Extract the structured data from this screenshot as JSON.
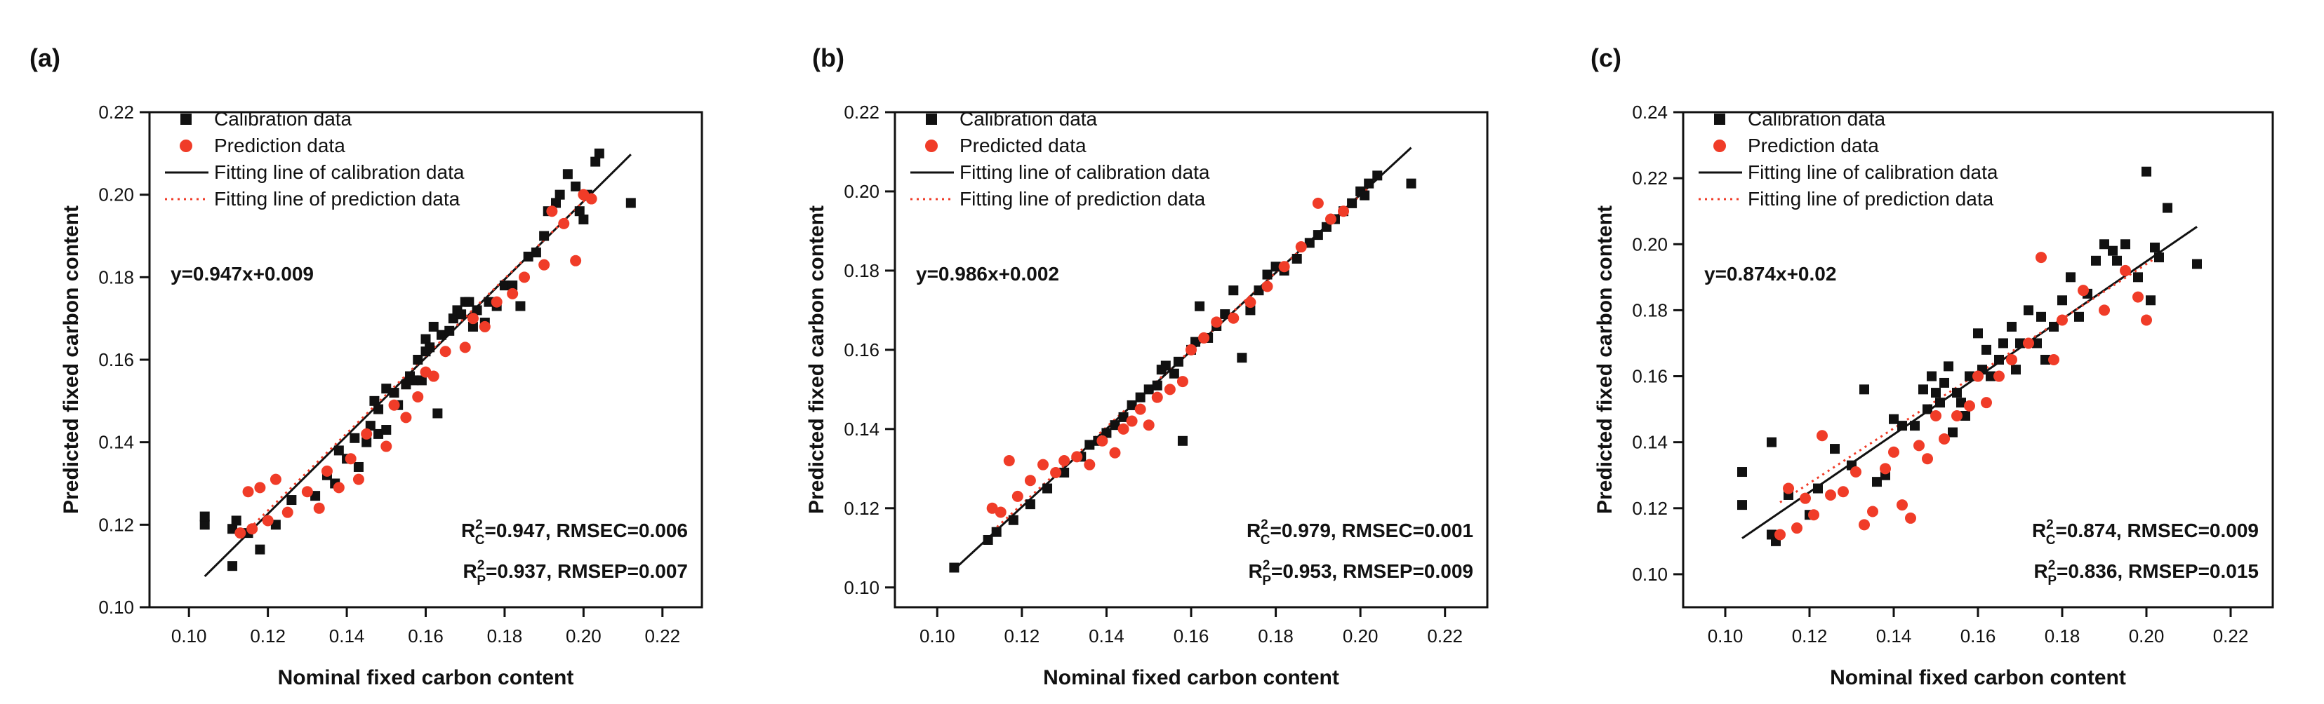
{
  "chart_data": [
    {
      "panel_label": "(a)",
      "type": "scatter",
      "xlabel": "Nominal fixed carbon content",
      "ylabel": "Predicted fixed carbon content",
      "xlim": [
        0.09,
        0.23
      ],
      "ylim": [
        0.1,
        0.22
      ],
      "xticks": [
        "0.10",
        "0.12",
        "0.14",
        "0.16",
        "0.18",
        "0.20",
        "0.22"
      ],
      "yticks": [
        "0.10",
        "0.12",
        "0.14",
        "0.16",
        "0.18",
        "0.20",
        "0.22"
      ],
      "legend": [
        "Calibration data",
        "Prediction data",
        "Fitting line of calibration data",
        "Fitting line of prediction data"
      ],
      "equation": "y=0.947x+0.009",
      "stat_lines": [
        {
          "sym": "R",
          "sup": "2",
          "sub": "C",
          "rest": "=0.947, RMSEC=0.006"
        },
        {
          "sym": "R",
          "sup": "2",
          "sub": "P",
          "rest": "=0.937, RMSEP=0.007"
        }
      ],
      "calibration_fit": {
        "slope": 0.947,
        "intercept": 0.009,
        "x_range": [
          0.104,
          0.212
        ]
      },
      "prediction_fit": {
        "slope": 0.937,
        "intercept": 0.011,
        "x_range": [
          0.113,
          0.202
        ]
      },
      "series": [
        {
          "name": "Calibration data",
          "color": "#111111",
          "marker": "square",
          "x": [
            0.104,
            0.104,
            0.111,
            0.111,
            0.112,
            0.115,
            0.118,
            0.122,
            0.126,
            0.132,
            0.135,
            0.137,
            0.138,
            0.14,
            0.142,
            0.143,
            0.145,
            0.146,
            0.147,
            0.148,
            0.148,
            0.15,
            0.15,
            0.152,
            0.153,
            0.155,
            0.156,
            0.157,
            0.158,
            0.159,
            0.16,
            0.16,
            0.161,
            0.162,
            0.163,
            0.164,
            0.166,
            0.167,
            0.168,
            0.169,
            0.17,
            0.171,
            0.172,
            0.173,
            0.175,
            0.176,
            0.178,
            0.18,
            0.182,
            0.184,
            0.186,
            0.188,
            0.19,
            0.191,
            0.193,
            0.194,
            0.196,
            0.198,
            0.199,
            0.2,
            0.201,
            0.203,
            0.204,
            0.212
          ],
          "y": [
            0.12,
            0.122,
            0.11,
            0.119,
            0.121,
            0.118,
            0.114,
            0.12,
            0.126,
            0.127,
            0.132,
            0.13,
            0.138,
            0.136,
            0.141,
            0.134,
            0.14,
            0.144,
            0.15,
            0.148,
            0.142,
            0.143,
            0.153,
            0.152,
            0.149,
            0.154,
            0.156,
            0.155,
            0.16,
            0.155,
            0.162,
            0.165,
            0.163,
            0.168,
            0.147,
            0.166,
            0.167,
            0.17,
            0.172,
            0.171,
            0.174,
            0.174,
            0.168,
            0.172,
            0.169,
            0.174,
            0.173,
            0.178,
            0.178,
            0.173,
            0.185,
            0.186,
            0.19,
            0.196,
            0.198,
            0.2,
            0.205,
            0.202,
            0.196,
            0.194,
            0.2,
            0.208,
            0.21,
            0.198
          ]
        },
        {
          "name": "Prediction data",
          "color": "#f03c28",
          "marker": "circle",
          "x": [
            0.113,
            0.115,
            0.116,
            0.118,
            0.12,
            0.122,
            0.125,
            0.13,
            0.133,
            0.135,
            0.138,
            0.141,
            0.143,
            0.145,
            0.15,
            0.152,
            0.155,
            0.158,
            0.16,
            0.162,
            0.165,
            0.17,
            0.172,
            0.175,
            0.178,
            0.182,
            0.185,
            0.19,
            0.192,
            0.195,
            0.198,
            0.2,
            0.202
          ],
          "y": [
            0.118,
            0.128,
            0.119,
            0.129,
            0.121,
            0.131,
            0.123,
            0.128,
            0.124,
            0.133,
            0.129,
            0.136,
            0.131,
            0.142,
            0.139,
            0.149,
            0.146,
            0.151,
            0.157,
            0.156,
            0.162,
            0.163,
            0.17,
            0.168,
            0.174,
            0.176,
            0.18,
            0.183,
            0.196,
            0.193,
            0.184,
            0.2,
            0.199
          ]
        },
        {
          "name": "Fitting line of calibration data",
          "color": "#111111",
          "style": "solid"
        },
        {
          "name": "Fitting line of prediction data",
          "color": "#f03c28",
          "style": "dotted"
        }
      ]
    },
    {
      "panel_label": "(b)",
      "type": "scatter",
      "xlabel": "Nominal fixed carbon content",
      "ylabel": "Predicted fixed carbon content",
      "xlim": [
        0.09,
        0.23
      ],
      "ylim": [
        0.095,
        0.22
      ],
      "xticks": [
        "0.10",
        "0.12",
        "0.14",
        "0.16",
        "0.18",
        "0.20",
        "0.22"
      ],
      "yticks": [
        "0.10",
        "0.12",
        "0.14",
        "0.16",
        "0.18",
        "0.20",
        "0.22"
      ],
      "legend": [
        "Calibration data",
        "Predicted data",
        "Fitting line of calibration data",
        "Fitting line of prediction data"
      ],
      "equation": "y=0.986x+0.002",
      "stat_lines": [
        {
          "sym": "R",
          "sup": "2",
          "sub": "C",
          "rest": "=0.979, RMSEC=0.001"
        },
        {
          "sym": "R",
          "sup": "2",
          "sub": "P",
          "rest": "=0.953, RMSEP=0.009"
        }
      ],
      "calibration_fit": {
        "slope": 0.986,
        "intercept": 0.002,
        "x_range": [
          0.104,
          0.212
        ]
      },
      "prediction_fit": {
        "slope": 0.975,
        "intercept": 0.004,
        "x_range": [
          0.113,
          0.202
        ]
      },
      "series": [
        {
          "name": "Calibration data",
          "color": "#111111",
          "marker": "square",
          "x": [
            0.104,
            0.112,
            0.114,
            0.118,
            0.122,
            0.126,
            0.13,
            0.134,
            0.136,
            0.138,
            0.14,
            0.142,
            0.144,
            0.146,
            0.148,
            0.15,
            0.152,
            0.153,
            0.154,
            0.156,
            0.157,
            0.158,
            0.16,
            0.161,
            0.162,
            0.164,
            0.166,
            0.168,
            0.17,
            0.172,
            0.174,
            0.176,
            0.178,
            0.18,
            0.182,
            0.185,
            0.188,
            0.19,
            0.192,
            0.194,
            0.196,
            0.198,
            0.2,
            0.201,
            0.202,
            0.204,
            0.212
          ],
          "y": [
            0.105,
            0.112,
            0.114,
            0.117,
            0.121,
            0.125,
            0.129,
            0.133,
            0.136,
            0.137,
            0.139,
            0.141,
            0.143,
            0.146,
            0.148,
            0.15,
            0.151,
            0.155,
            0.156,
            0.154,
            0.157,
            0.137,
            0.16,
            0.162,
            0.171,
            0.163,
            0.166,
            0.169,
            0.175,
            0.158,
            0.17,
            0.175,
            0.179,
            0.181,
            0.18,
            0.183,
            0.187,
            0.189,
            0.191,
            0.193,
            0.195,
            0.197,
            0.2,
            0.199,
            0.202,
            0.204,
            0.202
          ]
        },
        {
          "name": "Predicted data",
          "color": "#f03c28",
          "marker": "circle",
          "x": [
            0.113,
            0.115,
            0.117,
            0.119,
            0.122,
            0.125,
            0.128,
            0.13,
            0.133,
            0.136,
            0.139,
            0.142,
            0.144,
            0.146,
            0.148,
            0.15,
            0.152,
            0.155,
            0.158,
            0.16,
            0.163,
            0.166,
            0.17,
            0.174,
            0.178,
            0.182,
            0.186,
            0.19,
            0.193,
            0.196
          ],
          "y": [
            0.12,
            0.119,
            0.132,
            0.123,
            0.127,
            0.131,
            0.129,
            0.132,
            0.133,
            0.131,
            0.137,
            0.134,
            0.14,
            0.142,
            0.145,
            0.141,
            0.148,
            0.15,
            0.152,
            0.16,
            0.163,
            0.167,
            0.168,
            0.172,
            0.176,
            0.181,
            0.186,
            0.197,
            0.193,
            0.195
          ]
        },
        {
          "name": "Fitting line of calibration data",
          "color": "#111111",
          "style": "solid"
        },
        {
          "name": "Fitting line of prediction data",
          "color": "#f03c28",
          "style": "dotted"
        }
      ]
    },
    {
      "panel_label": "(c)",
      "type": "scatter",
      "xlabel": "Nominal fixed carbon content",
      "ylabel": "Predicted fixed carbon content",
      "xlim": [
        0.09,
        0.23
      ],
      "ylim": [
        0.09,
        0.24
      ],
      "xticks": [
        "0.10",
        "0.12",
        "0.14",
        "0.16",
        "0.18",
        "0.20",
        "0.22"
      ],
      "yticks": [
        "0.10",
        "0.12",
        "0.14",
        "0.16",
        "0.18",
        "0.20",
        "0.22",
        "0.24"
      ],
      "legend": [
        "Calibration data",
        "Prediction data",
        "Fitting line of calibration data",
        "Fitting line of prediction data"
      ],
      "equation": "y=0.874x+0.02",
      "stat_lines": [
        {
          "sym": "R",
          "sup": "2",
          "sub": "C",
          "rest": "=0.874, RMSEC=0.009"
        },
        {
          "sym": "R",
          "sup": "2",
          "sub": "P",
          "rest": "=0.836, RMSEP=0.015"
        }
      ],
      "calibration_fit": {
        "slope": 0.874,
        "intercept": 0.02,
        "x_range": [
          0.104,
          0.212
        ]
      },
      "prediction_fit": {
        "slope": 0.83,
        "intercept": 0.028,
        "x_range": [
          0.113,
          0.202
        ]
      },
      "series": [
        {
          "name": "Calibration data",
          "color": "#111111",
          "marker": "square",
          "x": [
            0.104,
            0.104,
            0.111,
            0.111,
            0.112,
            0.115,
            0.12,
            0.122,
            0.126,
            0.13,
            0.133,
            0.136,
            0.138,
            0.14,
            0.142,
            0.145,
            0.147,
            0.148,
            0.149,
            0.15,
            0.151,
            0.152,
            0.153,
            0.154,
            0.155,
            0.156,
            0.157,
            0.158,
            0.16,
            0.161,
            0.162,
            0.163,
            0.165,
            0.166,
            0.168,
            0.169,
            0.17,
            0.172,
            0.174,
            0.175,
            0.176,
            0.178,
            0.18,
            0.182,
            0.184,
            0.186,
            0.188,
            0.19,
            0.192,
            0.193,
            0.195,
            0.198,
            0.2,
            0.201,
            0.202,
            0.203,
            0.205,
            0.212
          ],
          "y": [
            0.131,
            0.121,
            0.14,
            0.112,
            0.11,
            0.124,
            0.118,
            0.126,
            0.138,
            0.133,
            0.156,
            0.128,
            0.13,
            0.147,
            0.145,
            0.145,
            0.156,
            0.15,
            0.16,
            0.155,
            0.152,
            0.158,
            0.163,
            0.143,
            0.155,
            0.152,
            0.148,
            0.16,
            0.173,
            0.162,
            0.168,
            0.16,
            0.165,
            0.17,
            0.175,
            0.162,
            0.17,
            0.18,
            0.17,
            0.178,
            0.165,
            0.175,
            0.183,
            0.19,
            0.178,
            0.185,
            0.195,
            0.2,
            0.198,
            0.195,
            0.2,
            0.19,
            0.222,
            0.183,
            0.199,
            0.196,
            0.211,
            0.194
          ]
        },
        {
          "name": "Prediction data",
          "color": "#f03c28",
          "marker": "circle",
          "x": [
            0.113,
            0.115,
            0.117,
            0.119,
            0.121,
            0.123,
            0.125,
            0.128,
            0.131,
            0.133,
            0.135,
            0.138,
            0.14,
            0.142,
            0.144,
            0.146,
            0.148,
            0.15,
            0.152,
            0.155,
            0.158,
            0.16,
            0.162,
            0.165,
            0.168,
            0.172,
            0.175,
            0.178,
            0.18,
            0.185,
            0.19,
            0.195,
            0.198,
            0.2
          ],
          "y": [
            0.112,
            0.126,
            0.114,
            0.123,
            0.118,
            0.142,
            0.124,
            0.125,
            0.131,
            0.115,
            0.119,
            0.132,
            0.137,
            0.121,
            0.117,
            0.139,
            0.135,
            0.148,
            0.141,
            0.148,
            0.151,
            0.16,
            0.152,
            0.16,
            0.165,
            0.17,
            0.196,
            0.165,
            0.177,
            0.186,
            0.18,
            0.192,
            0.184,
            0.177
          ]
        },
        {
          "name": "Fitting line of calibration data",
          "color": "#111111",
          "style": "solid"
        },
        {
          "name": "Fitting line of prediction data",
          "color": "#f03c28",
          "style": "dotted"
        }
      ]
    }
  ]
}
